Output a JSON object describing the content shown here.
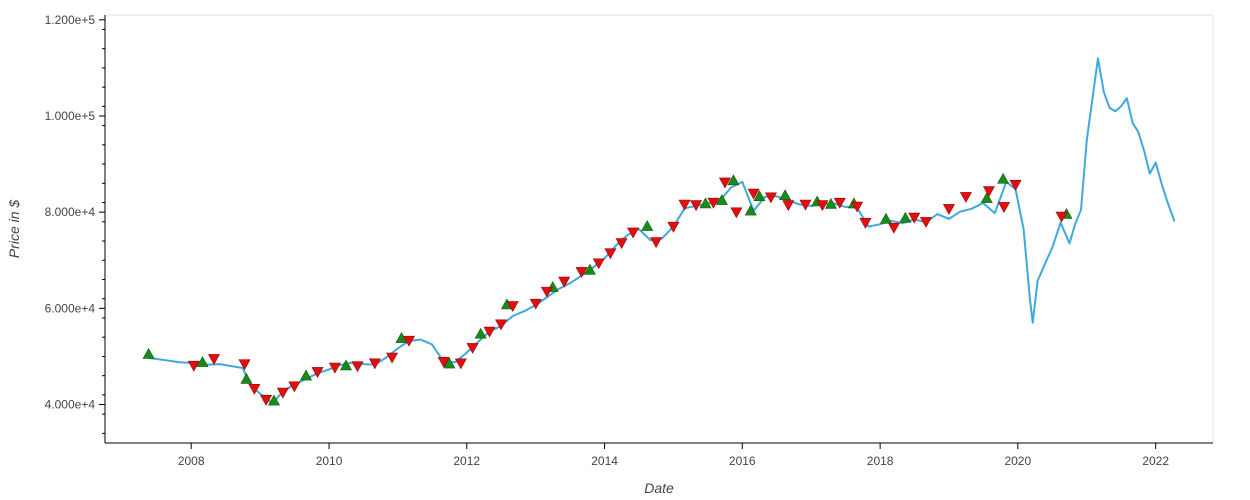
{
  "chart_data": {
    "type": "line",
    "title": "",
    "xlabel": "Date",
    "ylabel": "Price in $",
    "xlim": [
      "2006-10-01",
      "2022-11-01"
    ],
    "ylim": [
      32000,
      121000
    ],
    "x_ticks": [
      {
        "date": "2008-01-01",
        "label": "2008"
      },
      {
        "date": "2010-01-01",
        "label": "2010"
      },
      {
        "date": "2012-01-01",
        "label": "2012"
      },
      {
        "date": "2014-01-01",
        "label": "2014"
      },
      {
        "date": "2016-01-01",
        "label": "2016"
      },
      {
        "date": "2018-01-01",
        "label": "2018"
      },
      {
        "date": "2020-01-01",
        "label": "2020"
      },
      {
        "date": "2022-01-01",
        "label": "2022"
      }
    ],
    "y_ticks": [
      {
        "value": 40000,
        "label": "4.000e+4"
      },
      {
        "value": 60000,
        "label": "6.000e+4"
      },
      {
        "value": 80000,
        "label": "8.000e+4"
      },
      {
        "value": 100000,
        "label": "1.000e+5"
      },
      {
        "value": 120000,
        "label": "1.200e+5"
      }
    ],
    "grid": false,
    "colors": {
      "line": "#3fa8dc",
      "buy": "#1a8a1a",
      "sell": "#e01010",
      "axis": "#000000",
      "frame": "#e6e6e6"
    },
    "series": [
      {
        "marker": "line",
        "x": [
          "2007-05-20",
          "2007-08-01",
          "2007-11-01",
          "2008-02-01",
          "2008-04-01",
          "2008-06-01",
          "2008-08-01",
          "2008-10-01",
          "2008-11-01",
          "2008-12-15",
          "2009-01-20",
          "2009-03-01",
          "2009-03-20",
          "2009-05-01",
          "2009-07-01",
          "2009-09-01",
          "2009-11-01",
          "2010-01-01",
          "2010-03-01",
          "2010-05-01",
          "2010-07-01",
          "2010-09-01",
          "2010-11-01",
          "2011-01-01",
          "2011-03-01",
          "2011-05-01",
          "2011-07-01",
          "2011-09-01",
          "2011-11-01",
          "2012-01-01",
          "2012-03-01",
          "2012-05-01",
          "2012-07-01",
          "2012-09-01",
          "2012-11-01",
          "2013-01-01",
          "2013-03-01",
          "2013-05-01",
          "2013-07-01",
          "2013-09-01",
          "2013-11-01",
          "2014-01-01",
          "2014-03-01",
          "2014-05-01",
          "2014-07-01",
          "2014-09-01",
          "2014-11-01",
          "2015-01-01",
          "2015-03-01",
          "2015-05-01",
          "2015-07-01",
          "2015-09-01",
          "2015-11-01",
          "2016-01-01",
          "2016-03-01",
          "2016-05-01",
          "2016-07-01",
          "2016-09-01",
          "2016-11-01",
          "2017-01-01",
          "2017-03-01",
          "2017-05-01",
          "2017-07-01",
          "2017-09-01",
          "2017-11-01",
          "2018-01-01",
          "2018-03-01",
          "2018-05-01",
          "2018-07-01",
          "2018-09-01",
          "2018-11-01",
          "2019-01-01",
          "2019-03-01",
          "2019-05-01",
          "2019-07-01",
          "2019-09-01",
          "2019-11-01",
          "2019-12-20",
          "2020-02-01",
          "2020-03-05",
          "2020-03-20",
          "2020-04-15",
          "2020-06-01",
          "2020-07-01",
          "2020-08-15",
          "2020-10-01",
          "2020-11-01",
          "2020-12-01",
          "2021-01-01",
          "2021-02-01",
          "2021-03-01",
          "2021-04-01",
          "2021-05-01",
          "2021-06-01",
          "2021-07-01",
          "2021-08-01",
          "2021-09-01",
          "2021-10-01",
          "2021-11-01",
          "2021-12-01",
          "2022-01-01",
          "2022-02-01",
          "2022-03-01",
          "2022-04-10"
        ],
        "y": [
          49700,
          49300,
          48800,
          48600,
          48300,
          48400,
          48000,
          47600,
          44500,
          42800,
          41700,
          40400,
          40800,
          42700,
          44200,
          45300,
          46500,
          47300,
          48200,
          48700,
          48400,
          48300,
          49800,
          51700,
          53200,
          53500,
          52500,
          48900,
          48800,
          50800,
          53000,
          55200,
          56300,
          58400,
          59400,
          60700,
          62300,
          64000,
          65200,
          66800,
          68500,
          70400,
          73000,
          75200,
          76500,
          74200,
          74500,
          77000,
          80800,
          81300,
          81800,
          82200,
          85100,
          86300,
          80300,
          83200,
          83300,
          82400,
          81600,
          81300,
          81700,
          81800,
          81100,
          80900,
          77000,
          77500,
          78200,
          77700,
          78500,
          77900,
          79600,
          78600,
          80100,
          80700,
          81900,
          79800,
          86300,
          84800,
          76500,
          62000,
          57000,
          65700,
          70000,
          72500,
          77800,
          73500,
          77600,
          80500,
          95000,
          104000,
          112000,
          105000,
          101700,
          101000,
          102000,
          103700,
          98500,
          96700,
          92700,
          88000,
          90300,
          86000,
          82500,
          78200
        ]
      },
      {
        "marker": "triangle-up",
        "x": [
          "2007-05-20",
          "2008-03-01",
          "2008-10-20",
          "2009-03-15",
          "2009-09-01",
          "2010-04-01",
          "2011-01-20",
          "2011-10-01",
          "2012-03-15",
          "2012-08-01",
          "2013-04-01",
          "2013-10-15",
          "2014-08-15",
          "2015-06-20",
          "2015-09-15",
          "2015-11-15",
          "2016-02-15",
          "2016-04-01",
          "2016-08-15",
          "2017-02-01",
          "2017-04-15",
          "2017-08-15",
          "2018-02-01",
          "2018-05-15",
          "2019-07-20",
          "2019-10-15",
          "2020-09-15"
        ],
        "y": [
          50500,
          48800,
          45300,
          40800,
          46000,
          48100,
          53800,
          48500,
          54700,
          60800,
          64400,
          68000,
          77100,
          81800,
          82500,
          86600,
          80300,
          83300,
          83500,
          82200,
          81700,
          81800,
          78600,
          78800,
          82900,
          86900,
          79600
        ]
      },
      {
        "marker": "triangle-down",
        "x": [
          "2008-01-15",
          "2008-05-01",
          "2008-10-10",
          "2008-12-01",
          "2009-02-01",
          "2009-05-01",
          "2009-07-01",
          "2009-11-01",
          "2010-02-01",
          "2010-06-01",
          "2010-09-01",
          "2010-12-01",
          "2011-03-01",
          "2011-09-01",
          "2011-12-01",
          "2012-02-01",
          "2012-05-01",
          "2012-07-01",
          "2012-09-01",
          "2013-01-01",
          "2013-03-01",
          "2013-06-01",
          "2013-09-01",
          "2013-12-01",
          "2014-02-01",
          "2014-04-01",
          "2014-06-01",
          "2014-10-01",
          "2015-01-01",
          "2015-03-01",
          "2015-05-01",
          "2015-08-01",
          "2015-10-01",
          "2015-12-01",
          "2016-03-01",
          "2016-06-01",
          "2016-09-01",
          "2016-12-01",
          "2017-03-01",
          "2017-06-01",
          "2017-09-01",
          "2017-10-15",
          "2018-03-15",
          "2018-07-01",
          "2018-09-01",
          "2019-01-01",
          "2019-04-01",
          "2019-08-01",
          "2019-10-20",
          "2019-12-20",
          "2020-08-20"
        ],
        "y": [
          48100,
          49500,
          48400,
          43300,
          41000,
          42500,
          43800,
          46800,
          47700,
          48000,
          48600,
          49800,
          53300,
          48900,
          48600,
          51800,
          55200,
          56700,
          60500,
          61000,
          63500,
          65600,
          67600,
          69400,
          71500,
          73600,
          75800,
          73800,
          77000,
          81600,
          81500,
          82000,
          86200,
          80000,
          83900,
          83100,
          81500,
          81600,
          81500,
          82000,
          81200,
          77800,
          76800,
          78900,
          78000,
          80700,
          83200,
          84400,
          81100,
          85700,
          79100
        ]
      }
    ]
  }
}
